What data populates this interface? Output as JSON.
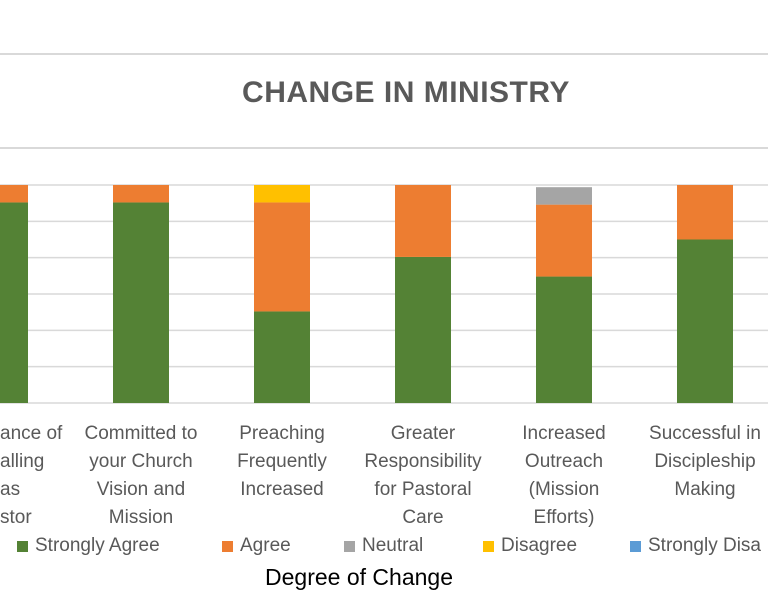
{
  "chart_data": {
    "type": "bar",
    "stacked": true,
    "title": "CHANGE IN MINISTRY",
    "xlabel": "Degree of Change",
    "ylabel": "",
    "ylim": [
      0,
      100
    ],
    "categories": [
      "Acceptance of\nCalling as\nPastor",
      "Committed to\nyour Church\nVision and\nMission",
      "Preaching\nFrequently\nIncreased",
      "Greater\nResponsibility\nfor Pastoral\nCare",
      "Increased\nOutreach\n(Mission\nEfforts)",
      "Successful in\nDiscipleship\nMaking"
    ],
    "visible_category_labels": [
      "ance of\nalling as\nstor",
      "Committed to\nyour Church\nVision and\nMission",
      "Preaching\nFrequently\nIncreased",
      "Greater\nResponsibility\nfor Pastoral\nCare",
      "Increased\nOutreach\n(Mission\nEfforts)",
      "Successful in\nDiscipleship\nMaking"
    ],
    "series": [
      {
        "name": "Strongly Agree",
        "color": "#548235",
        "values": [
          92,
          92,
          42,
          67,
          58,
          75
        ]
      },
      {
        "name": "Agree",
        "color": "#ed7d31",
        "values": [
          8,
          8,
          50,
          33,
          33,
          25
        ]
      },
      {
        "name": "Neutral",
        "color": "#a5a5a5",
        "values": [
          0,
          0,
          0,
          0,
          8,
          0
        ]
      },
      {
        "name": "Disagree",
        "color": "#ffc000",
        "values": [
          0,
          0,
          8,
          0,
          0,
          0
        ]
      },
      {
        "name": "Strongly Disagree",
        "color": "#5b9bd5",
        "values": [
          0,
          0,
          0,
          0,
          0,
          0
        ]
      }
    ],
    "legend_labels": [
      "Strongly Agree",
      "Agree",
      "Neutral",
      "Disagree",
      "Strongly Disa"
    ],
    "legend_position": "bottom",
    "grid": true
  }
}
